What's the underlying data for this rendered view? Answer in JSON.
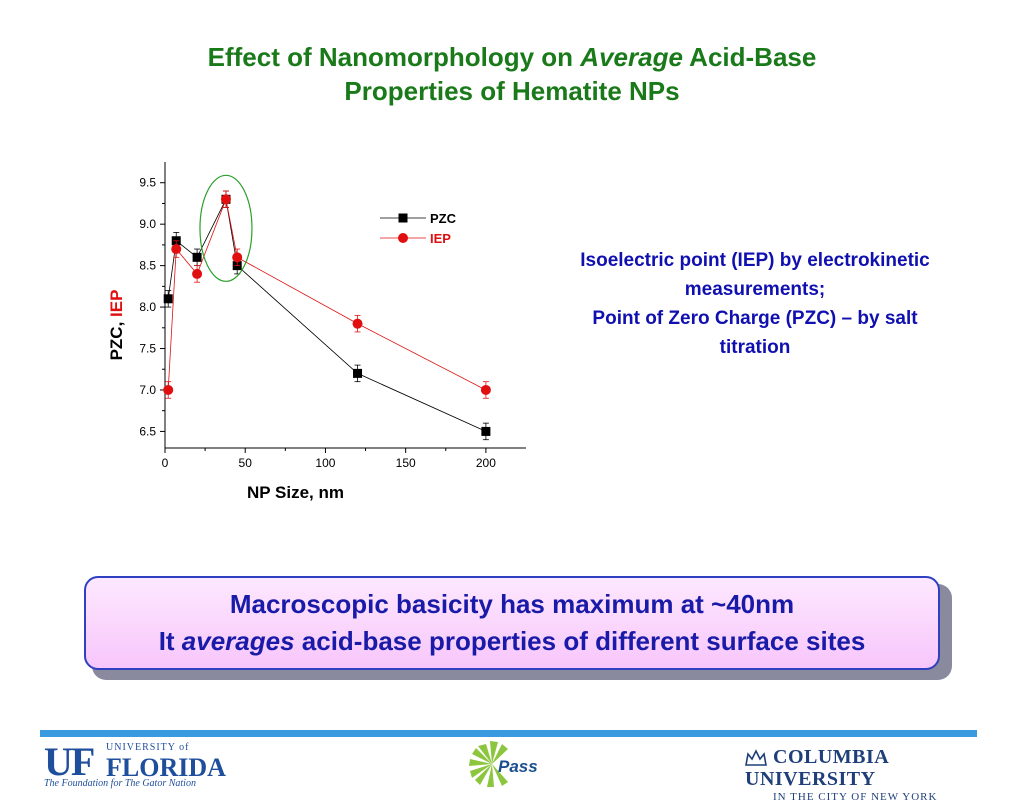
{
  "slide": {
    "title_part1": "Effect of Nanomorphology on ",
    "title_emph": "Average",
    "title_part2": " Acid-Base",
    "title_line2": "Properties of Hematite NPs"
  },
  "side_note": {
    "line1": "Isoelectric point (IEP) by electrokinetic",
    "line2": "measurements;",
    "line3": "Point of Zero Charge (PZC) – by salt",
    "line4": "titration"
  },
  "callout": {
    "line1": "Macroscopic basicity has maximum at ~40nm",
    "line2_prefix": "It ",
    "line2_emph": "averages",
    "line2_suffix": " acid-base properties of different surface sites"
  },
  "footer": {
    "uf_mark": "UF",
    "uf_small": "UNIVERSITY of",
    "uf_big": "FLORIDA",
    "uf_tagline": "The Foundation for The Gator Nation",
    "pass_logo_text": "Pass",
    "columbia_name": "COLUMBIA UNIVERSITY",
    "columbia_sub": "IN THE CITY OF NEW YORK"
  },
  "colors": {
    "title": "#1a7a1a",
    "note": "#1010b0",
    "pzc": "#000000",
    "iep": "#e01010",
    "highlight_ellipse": "#2aa02a"
  },
  "chart_data": {
    "type": "scatter",
    "xlabel": "NP Size, nm",
    "ylabel_part1": "PZC, ",
    "ylabel_part2": "IEP",
    "xlim": [
      0,
      225
    ],
    "ylim": [
      6.3,
      9.75
    ],
    "xticks": [
      0,
      50,
      100,
      150,
      200
    ],
    "yticks": [
      6.5,
      7.0,
      7.5,
      8.0,
      8.5,
      9.0,
      9.5
    ],
    "legend_position": "top-right",
    "highlight_x": 38,
    "series": [
      {
        "name": "PZC",
        "marker": "square",
        "color": "#000000",
        "x": [
          2,
          7,
          20,
          38,
          45,
          120,
          200
        ],
        "y": [
          8.1,
          8.8,
          8.6,
          9.3,
          8.5,
          7.2,
          6.5
        ],
        "err": [
          0.1,
          0.1,
          0.1,
          0.1,
          0.1,
          0.1,
          0.1
        ]
      },
      {
        "name": "IEP",
        "marker": "circle",
        "color": "#e01010",
        "x": [
          2,
          7,
          20,
          38,
          45,
          120,
          200
        ],
        "y": [
          7.0,
          8.7,
          8.4,
          9.3,
          8.6,
          7.8,
          7.0
        ],
        "err": [
          0.1,
          0.1,
          0.1,
          0.1,
          0.1,
          0.1,
          0.1
        ]
      }
    ]
  }
}
